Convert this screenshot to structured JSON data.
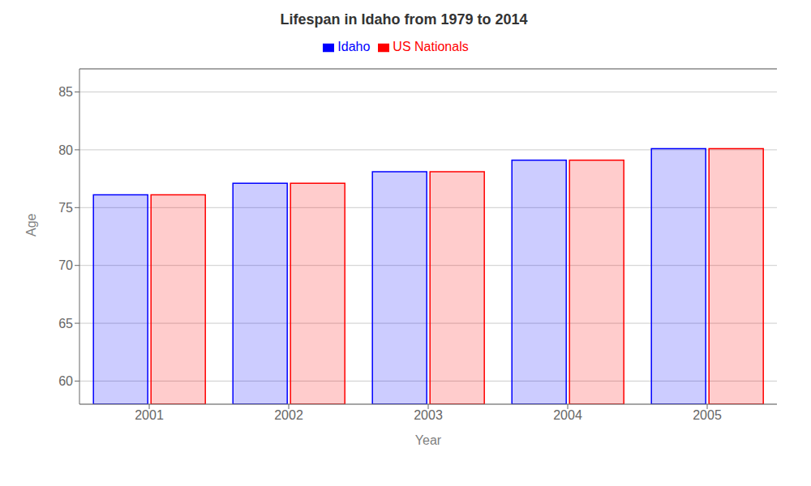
{
  "chart_data": {
    "type": "bar",
    "title": "Lifespan in Idaho from 1979 to 2014",
    "x_label": "Year",
    "y_label": "Age",
    "categories": [
      2001,
      2002,
      2003,
      2004,
      2005
    ],
    "series": [
      {
        "name": "Idaho",
        "color": "#0000ff",
        "values": [
          76.1,
          77.1,
          78.1,
          79.1,
          80.1
        ]
      },
      {
        "name": "US Nationals",
        "color": "#ff0000",
        "values": [
          76.1,
          77.1,
          78.1,
          79.1,
          80.1
        ]
      }
    ],
    "ylim": [
      58,
      87
    ],
    "yticks": [
      60,
      65,
      70,
      75,
      80,
      85
    ],
    "grid": true,
    "legend": "top"
  }
}
